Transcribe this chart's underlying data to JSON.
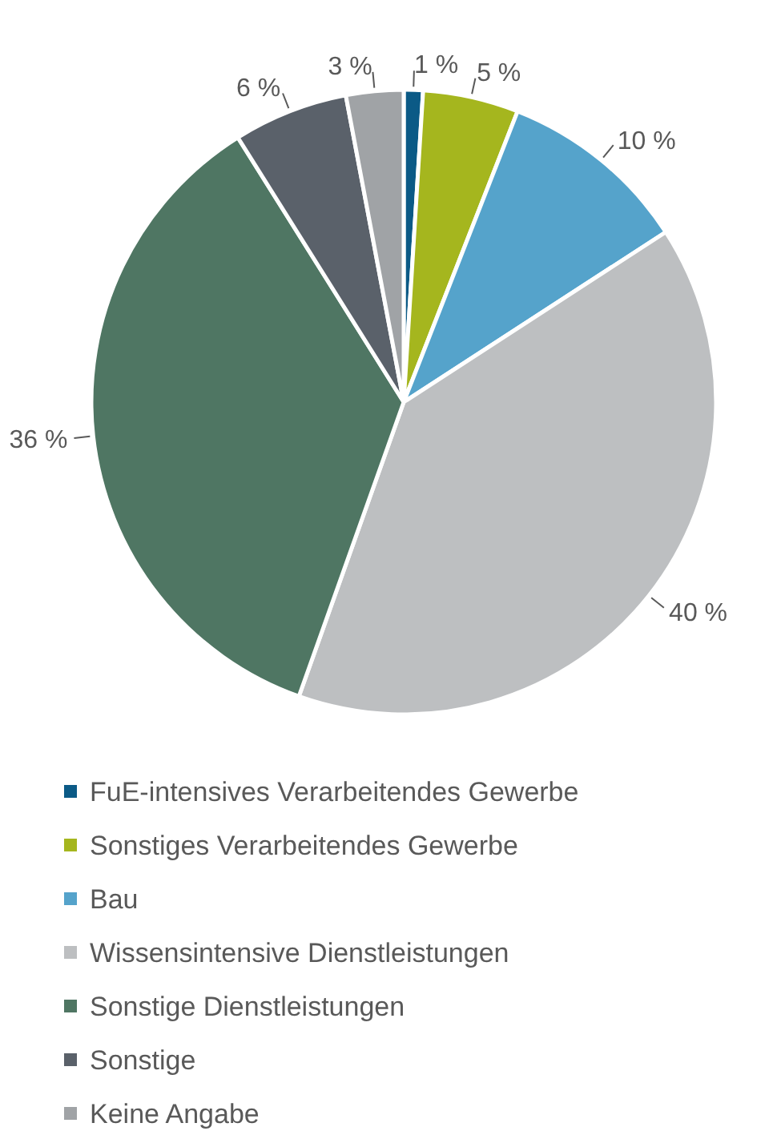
{
  "chart_data": {
    "type": "pie",
    "categories": [
      "FuE-intensives Verarbeitendes Gewerbe",
      "Sonstiges Verarbeitendes Gewerbe",
      "Bau",
      "Wissensintensive Dienstleistungen",
      "Sonstige Dienstleistungen",
      "Sonstige",
      "Keine Angabe"
    ],
    "values": [
      1,
      5,
      10,
      40,
      36,
      6,
      3
    ],
    "value_labels": [
      "1 %",
      "5 %",
      "10 %",
      "40 %",
      "36 %",
      "6 %",
      "3 %"
    ],
    "colors": [
      "#0b5a86",
      "#a5b61e",
      "#55a3cb",
      "#bdbfc1",
      "#4f7663",
      "#5a616a",
      "#a0a3a6"
    ],
    "legend": "bottom"
  }
}
